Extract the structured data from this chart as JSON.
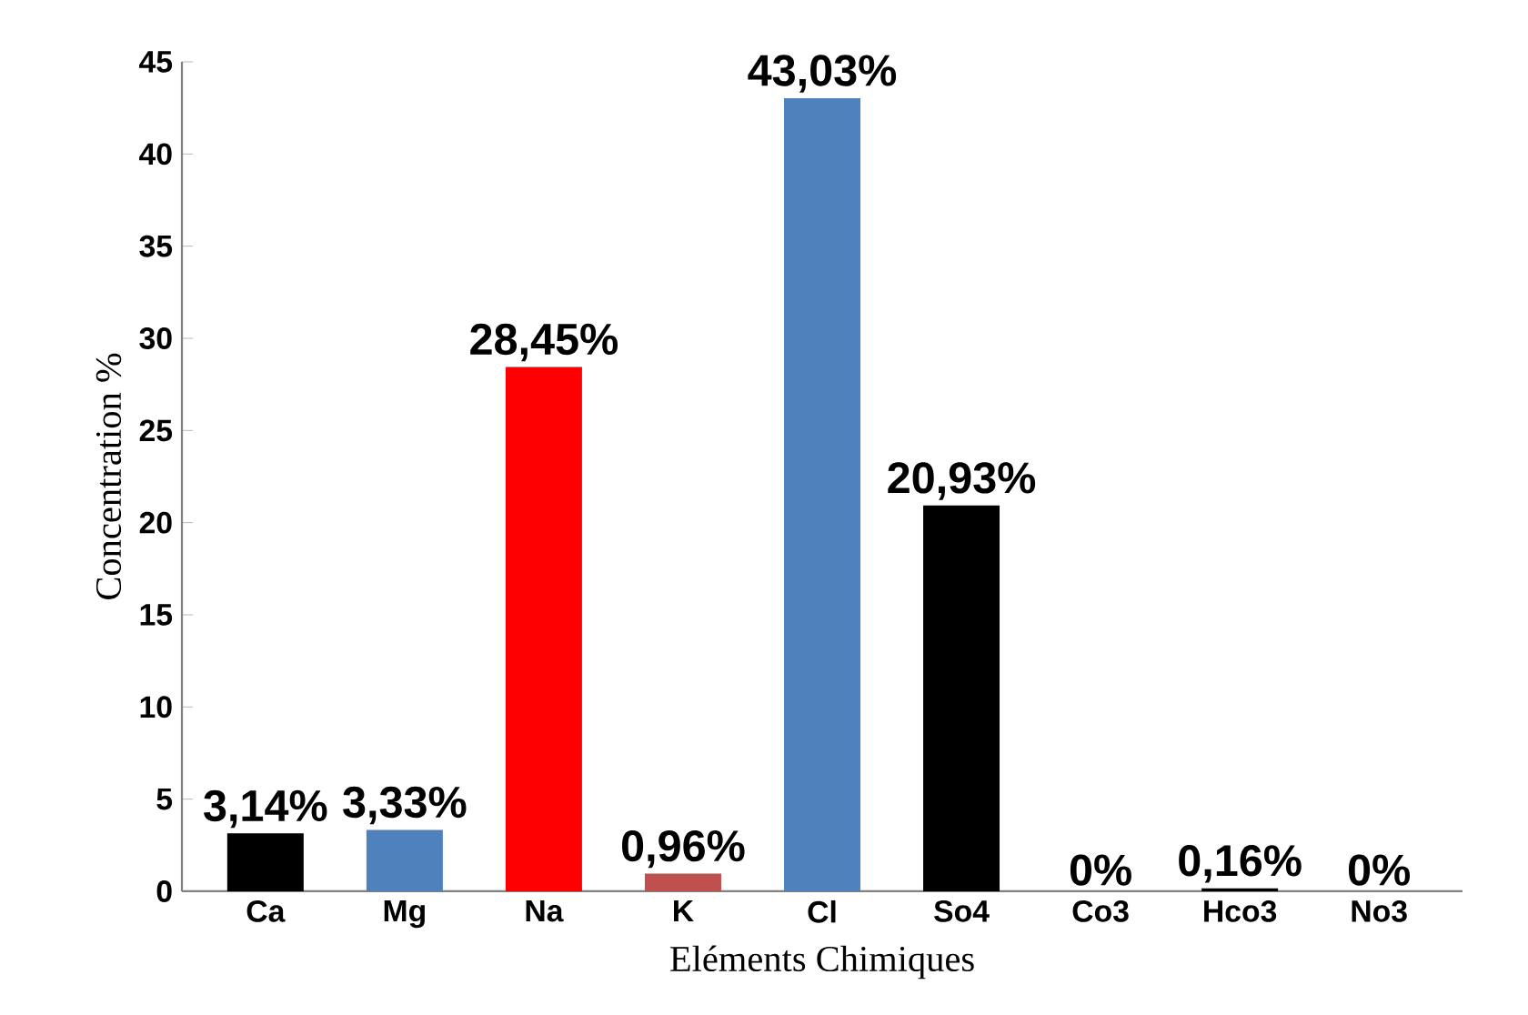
{
  "chart_data": {
    "type": "bar",
    "categories": [
      "Ca",
      "Mg",
      "Na",
      "K",
      "Cl",
      "So4",
      "Co3",
      "Hco3",
      "No3"
    ],
    "values": [
      3.14,
      3.33,
      28.45,
      0.96,
      43.03,
      20.93,
      0,
      0.16,
      0
    ],
    "value_labels": [
      "3,14%",
      "3,33%",
      "28,45%",
      "0,96%",
      "43,03%",
      "20,93%",
      "0%",
      "0,16%",
      "0%"
    ],
    "colors": [
      "#000000",
      "#4f81bd",
      "#ff0000",
      "#c0504d",
      "#4f81bd",
      "#000000",
      "#000000",
      "#000000",
      "#000000"
    ],
    "xlabel": "Eléments Chimiques",
    "ylabel": "Concentration %",
    "ylim": [
      0,
      45
    ],
    "yticks": [
      0,
      5,
      10,
      15,
      20,
      25,
      30,
      35,
      40,
      45
    ]
  }
}
